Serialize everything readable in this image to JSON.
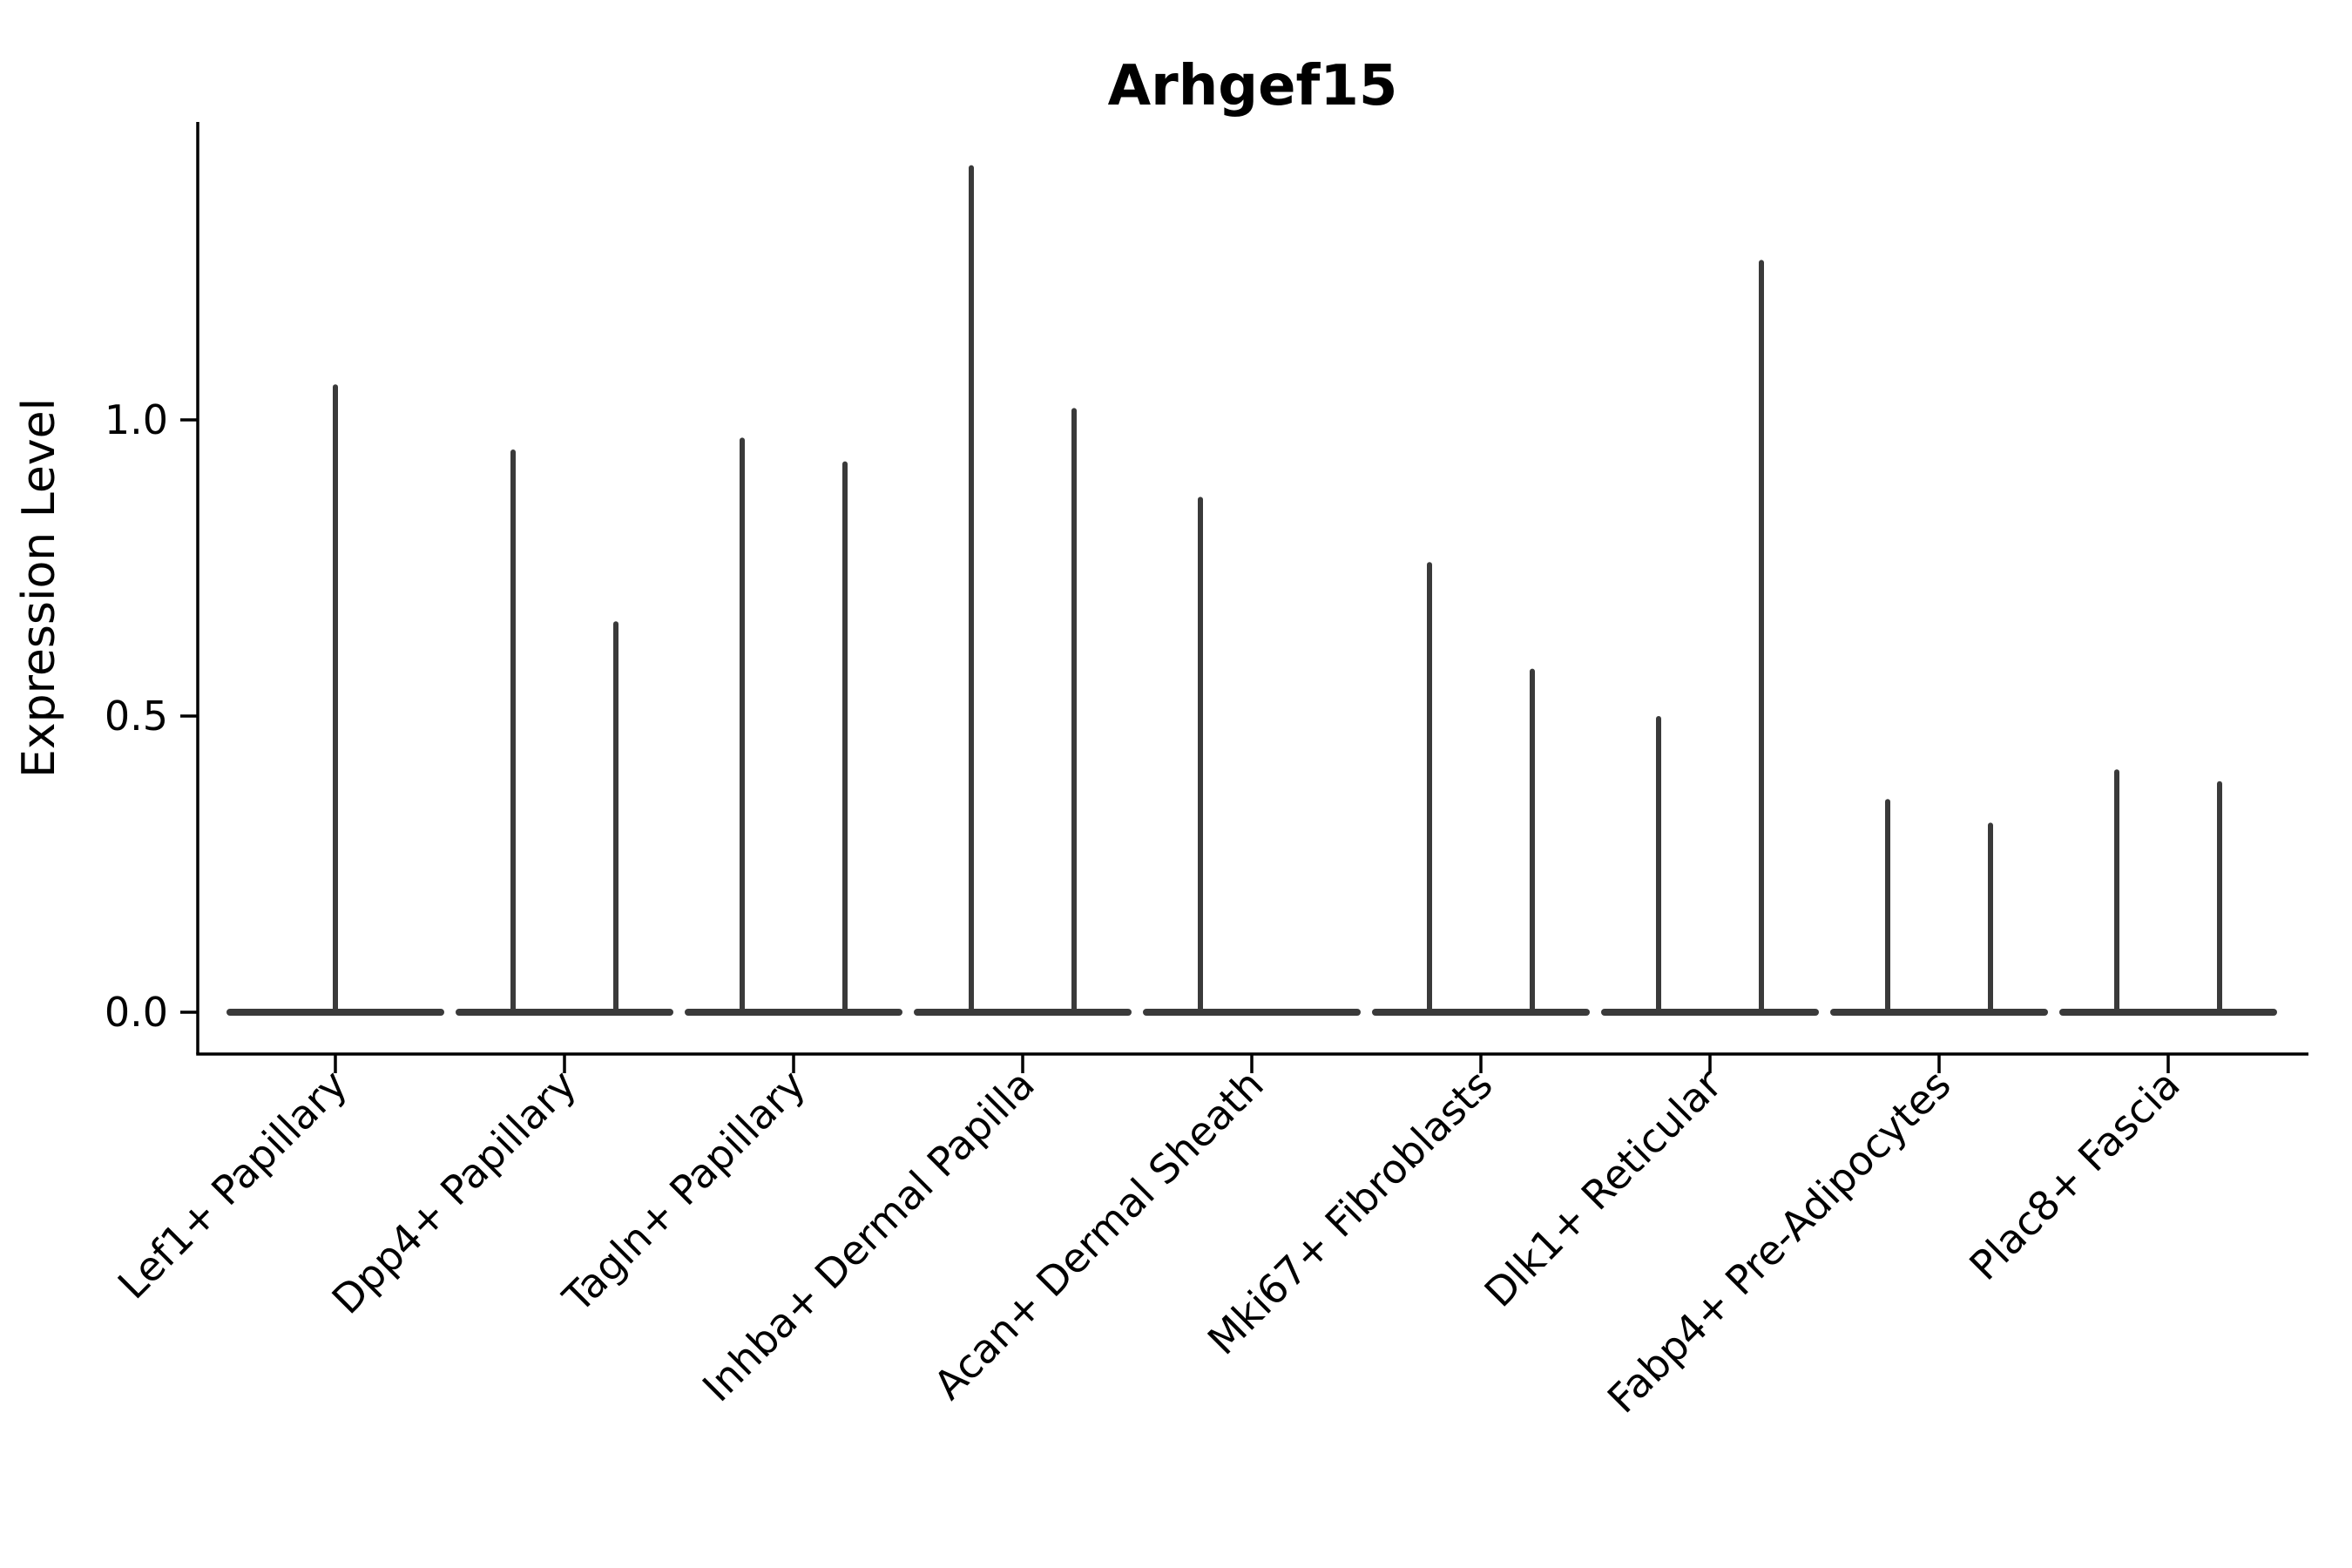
{
  "chart_data": {
    "type": "violin",
    "title": "Arhgef15",
    "xlabel": "",
    "ylabel": "Expression Level",
    "grid": false,
    "legend": "none",
    "background_color": "#ffffff",
    "violin_line_color": "#3a3a3a",
    "axis_color": "#000000",
    "ylim": [
      -0.07,
      1.5
    ],
    "yticks": [
      {
        "label": "0.0",
        "value": 0.0
      },
      {
        "label": "0.5",
        "value": 0.5
      },
      {
        "label": "1.0",
        "value": 1.0
      }
    ],
    "categories": [
      "Lef1+ Papillary",
      "Dpp4+ Papillary",
      "Tagln+ Papillary",
      "Inhba+ Dermal Papilla",
      "Acan+ Dermal Sheath",
      "Mki67+ Fibroblasts",
      "Dlk1+ Reticular",
      "Fabp4+ Pre-Adipocytes",
      "Plac8+ Fascia"
    ],
    "violins": [
      {
        "category": "Lef1+ Papillary",
        "spikes": [
          {
            "slot": "center",
            "peak": 1.06
          }
        ]
      },
      {
        "category": "Dpp4+ Papillary",
        "spikes": [
          {
            "slot": "left",
            "peak": 0.95
          },
          {
            "slot": "right",
            "peak": 0.66
          }
        ]
      },
      {
        "category": "Tagln+ Papillary",
        "spikes": [
          {
            "slot": "left",
            "peak": 0.97
          },
          {
            "slot": "right",
            "peak": 0.93
          }
        ]
      },
      {
        "category": "Inhba+ Dermal Papilla",
        "spikes": [
          {
            "slot": "left",
            "peak": 1.43
          },
          {
            "slot": "right",
            "peak": 1.02
          }
        ]
      },
      {
        "category": "Acan+ Dermal Sheath",
        "spikes": [
          {
            "slot": "left",
            "peak": 0.87
          }
        ]
      },
      {
        "category": "Mki67+ Fibroblasts",
        "spikes": [
          {
            "slot": "left",
            "peak": 0.76
          },
          {
            "slot": "right",
            "peak": 0.58
          }
        ]
      },
      {
        "category": "Dlk1+ Reticular",
        "spikes": [
          {
            "slot": "left",
            "peak": 0.5
          },
          {
            "slot": "right",
            "peak": 1.27
          }
        ]
      },
      {
        "category": "Fabp4+ Pre-Adipocytes",
        "spikes": [
          {
            "slot": "left",
            "peak": 0.36
          },
          {
            "slot": "right",
            "peak": 0.32
          }
        ]
      },
      {
        "category": "Plac8+ Fascia",
        "spikes": [
          {
            "slot": "left",
            "peak": 0.41
          },
          {
            "slot": "right",
            "peak": 0.39
          }
        ]
      }
    ]
  }
}
